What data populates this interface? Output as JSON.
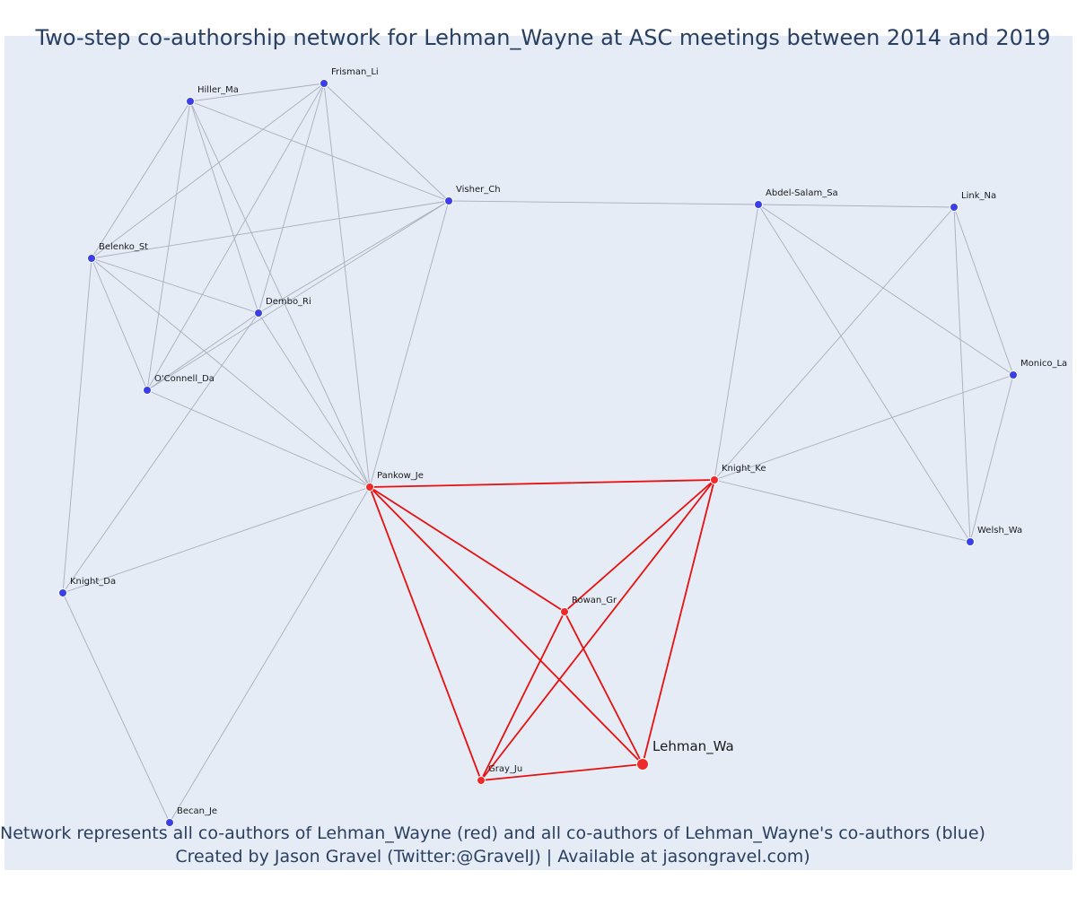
{
  "title": "Two-step co-authorship network for Lehman_Wayne at ASC meetings between 2014 and 2019",
  "caption_line1": "Network represents all co-authors of Lehman_Wayne (red) and all co-authors of Lehman_Wayne's co-authors (blue)",
  "caption_line2": "Created by Jason Gravel (Twitter:@GravelJ) | Available at jasongravel.com)",
  "colors": {
    "plot_bg": "#e5ecf6",
    "blue_node": "#3b3fe6",
    "red_node": "#ee2a2a",
    "red_edge": "#e80f0f",
    "grey_edge": "#a9adbd"
  },
  "nodes": [
    {
      "id": "Frisman_Li",
      "group": "two-step"
    },
    {
      "id": "Hiller_Ma",
      "group": "two-step"
    },
    {
      "id": "Visher_Ch",
      "group": "two-step"
    },
    {
      "id": "Abdel-Salam_Sa",
      "group": "two-step"
    },
    {
      "id": "Link_Na",
      "group": "two-step"
    },
    {
      "id": "Belenko_St",
      "group": "two-step"
    },
    {
      "id": "Dembo_Ri",
      "group": "two-step"
    },
    {
      "id": "O'Connell_Da",
      "group": "two-step"
    },
    {
      "id": "Monico_La",
      "group": "two-step"
    },
    {
      "id": "Pankow_Je",
      "group": "co-author"
    },
    {
      "id": "Knight_Ke",
      "group": "co-author"
    },
    {
      "id": "Welsh_Wa",
      "group": "two-step"
    },
    {
      "id": "Knight_Da",
      "group": "two-step"
    },
    {
      "id": "Rowan_Gr",
      "group": "co-author"
    },
    {
      "id": "Lehman_Wa",
      "group": "focal"
    },
    {
      "id": "Gray_Ju",
      "group": "co-author"
    },
    {
      "id": "Becan_Je",
      "group": "two-step"
    }
  ],
  "edges": [
    [
      "Hiller_Ma",
      "Frisman_Li"
    ],
    [
      "Hiller_Ma",
      "Visher_Ch"
    ],
    [
      "Hiller_Ma",
      "Belenko_St"
    ],
    [
      "Hiller_Ma",
      "Dembo_Ri"
    ],
    [
      "Hiller_Ma",
      "O'Connell_Da"
    ],
    [
      "Hiller_Ma",
      "Pankow_Je"
    ],
    [
      "Frisman_Li",
      "Visher_Ch"
    ],
    [
      "Frisman_Li",
      "Belenko_St"
    ],
    [
      "Frisman_Li",
      "Dembo_Ri"
    ],
    [
      "Frisman_Li",
      "O'Connell_Da"
    ],
    [
      "Frisman_Li",
      "Pankow_Je"
    ],
    [
      "Visher_Ch",
      "Belenko_St"
    ],
    [
      "Visher_Ch",
      "Dembo_Ri"
    ],
    [
      "Visher_Ch",
      "O'Connell_Da"
    ],
    [
      "Visher_Ch",
      "Pankow_Je"
    ],
    [
      "Visher_Ch",
      "Abdel-Salam_Sa"
    ],
    [
      "Belenko_St",
      "Dembo_Ri"
    ],
    [
      "Belenko_St",
      "O'Connell_Da"
    ],
    [
      "Belenko_St",
      "Pankow_Je"
    ],
    [
      "Belenko_St",
      "Knight_Da"
    ],
    [
      "Dembo_Ri",
      "O'Connell_Da"
    ],
    [
      "Dembo_Ri",
      "Pankow_Je"
    ],
    [
      "Dembo_Ri",
      "Knight_Da"
    ],
    [
      "O'Connell_Da",
      "Pankow_Je"
    ],
    [
      "Knight_Da",
      "Pankow_Je"
    ],
    [
      "Knight_Da",
      "Becan_Je"
    ],
    [
      "Becan_Je",
      "Pankow_Je"
    ],
    [
      "Abdel-Salam_Sa",
      "Link_Na"
    ],
    [
      "Abdel-Salam_Sa",
      "Monico_La"
    ],
    [
      "Abdel-Salam_Sa",
      "Welsh_Wa"
    ],
    [
      "Abdel-Salam_Sa",
      "Knight_Ke"
    ],
    [
      "Link_Na",
      "Monico_La"
    ],
    [
      "Link_Na",
      "Welsh_Wa"
    ],
    [
      "Link_Na",
      "Knight_Ke"
    ],
    [
      "Monico_La",
      "Welsh_Wa"
    ],
    [
      "Monico_La",
      "Knight_Ke"
    ],
    [
      "Knight_Ke",
      "Welsh_Wa"
    ],
    [
      "Pankow_Je",
      "Knight_Ke"
    ],
    [
      "Pankow_Je",
      "Rowan_Gr"
    ],
    [
      "Pankow_Je",
      "Lehman_Wa"
    ],
    [
      "Pankow_Je",
      "Gray_Ju"
    ],
    [
      "Knight_Ke",
      "Rowan_Gr"
    ],
    [
      "Knight_Ke",
      "Lehman_Wa"
    ],
    [
      "Knight_Ke",
      "Gray_Ju"
    ],
    [
      "Rowan_Gr",
      "Lehman_Wa"
    ],
    [
      "Rowan_Gr",
      "Gray_Ju"
    ],
    [
      "Gray_Ju",
      "Lehman_Wa"
    ]
  ]
}
